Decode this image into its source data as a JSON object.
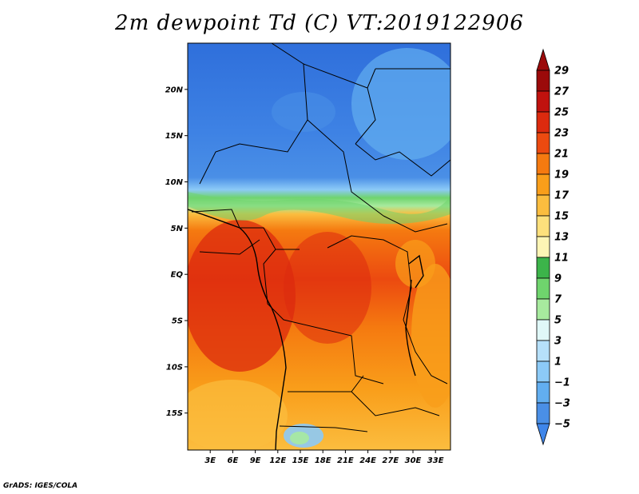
{
  "title": "2m dewpoint Td (C) VT:2019122906",
  "footer": "GrADS: IGES/COLA",
  "map": {
    "lat_range": [
      -19,
      25
    ],
    "lon_range": [
      0,
      35
    ],
    "lat_ticks": [
      {
        "value": 20,
        "label": "20N"
      },
      {
        "value": 15,
        "label": "15N"
      },
      {
        "value": 10,
        "label": "10N"
      },
      {
        "value": 5,
        "label": "5N"
      },
      {
        "value": 0,
        "label": "EQ"
      },
      {
        "value": -5,
        "label": "5S"
      },
      {
        "value": -10,
        "label": "10S"
      },
      {
        "value": -15,
        "label": "15S"
      }
    ],
    "lon_ticks": [
      {
        "value": 3,
        "label": "3E"
      },
      {
        "value": 6,
        "label": "6E"
      },
      {
        "value": 9,
        "label": "9E"
      },
      {
        "value": 12,
        "label": "12E"
      },
      {
        "value": 15,
        "label": "15E"
      },
      {
        "value": 18,
        "label": "18E"
      },
      {
        "value": 21,
        "label": "21E"
      },
      {
        "value": 24,
        "label": "24E"
      },
      {
        "value": 27,
        "label": "27E"
      },
      {
        "value": 30,
        "label": "30E"
      },
      {
        "value": 33,
        "label": "33E"
      }
    ]
  },
  "colorbar": {
    "levels": [
      {
        "label": "29",
        "color": "#9b0a0a"
      },
      {
        "label": "27",
        "color": "#c0120e"
      },
      {
        "label": "25",
        "color": "#dc2a0e"
      },
      {
        "label": "23",
        "color": "#ec4a10"
      },
      {
        "label": "21",
        "color": "#f57a10"
      },
      {
        "label": "19",
        "color": "#f99e1a"
      },
      {
        "label": "17",
        "color": "#fbbd3f"
      },
      {
        "label": "15",
        "color": "#fde07c"
      },
      {
        "label": "13",
        "color": "#fdf5b5"
      },
      {
        "label": "11",
        "color": "#3cb44a"
      },
      {
        "label": "9",
        "color": "#6fd46d"
      },
      {
        "label": "7",
        "color": "#a7ea9e"
      },
      {
        "label": "5",
        "color": "#e0f8f8"
      },
      {
        "label": "3",
        "color": "#b6e0fa"
      },
      {
        "label": "1",
        "color": "#8ccaf7"
      },
      {
        "label": "−1",
        "color": "#62aef0"
      },
      {
        "label": "−3",
        "color": "#4a8fe6"
      },
      {
        "label": "−5",
        "color": "#2f6fdb"
      }
    ],
    "bottom_color": "#3f86ea"
  }
}
